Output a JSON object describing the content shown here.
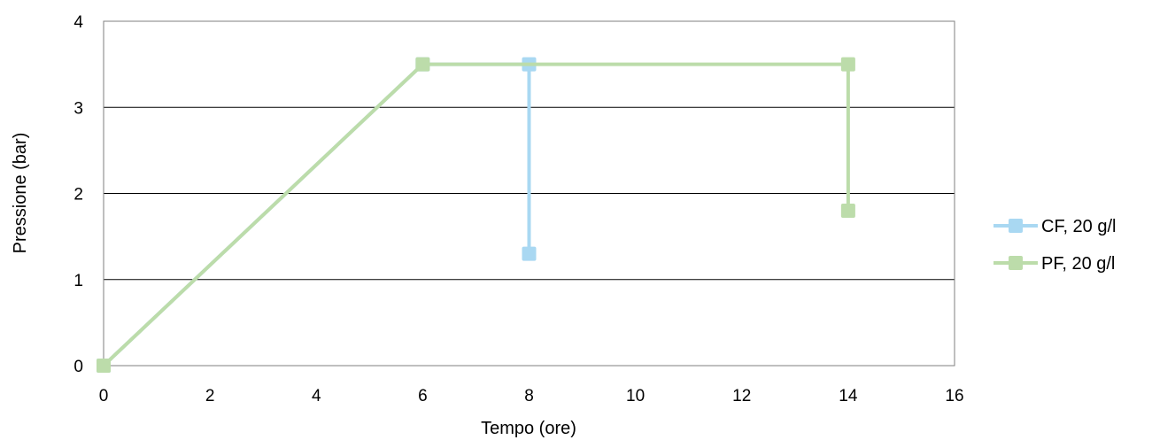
{
  "chart_data": {
    "type": "line",
    "title": "",
    "xlabel": "Tempo (ore)",
    "ylabel": "Pressione (bar)",
    "xlim": [
      0,
      16
    ],
    "ylim": [
      0,
      4
    ],
    "xticks": [
      "0",
      "2",
      "4",
      "6",
      "8",
      "10",
      "12",
      "14",
      "16"
    ],
    "yticks": [
      "0",
      "1",
      "2",
      "3",
      "4"
    ],
    "grid": "horizontal",
    "legend_position": "right",
    "series": [
      {
        "name": "CF, 20 g/l",
        "color": "#a9d8f2",
        "points": [
          [
            0,
            0
          ],
          [
            6,
            3.5
          ],
          [
            8,
            3.5
          ],
          [
            8,
            1.3
          ]
        ]
      },
      {
        "name": "PF, 20 g/l",
        "color": "#bcdcaa",
        "points": [
          [
            0,
            0
          ],
          [
            6,
            3.5
          ],
          [
            14,
            3.5
          ],
          [
            14,
            1.8
          ]
        ]
      }
    ]
  }
}
